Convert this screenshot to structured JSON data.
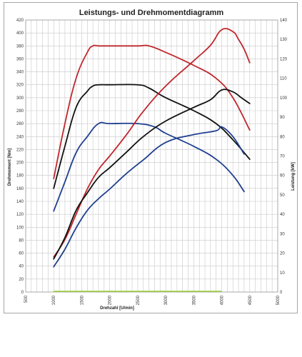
{
  "chart_data": {
    "type": "line",
    "title": "Leistungs- und Drehmomentdiagramm",
    "xlabel": "Drehzahl [U/min]",
    "ylabel": "Drehmoment [Nm]",
    "y2label": "Leistung [kW]",
    "xlim": [
      500,
      5000
    ],
    "ylim": [
      0,
      420
    ],
    "y2lim": [
      0,
      140
    ],
    "x_ticks": [
      "500",
      "1000",
      "1500",
      "2000",
      "2500",
      "3000",
      "3500",
      "4000",
      "4500",
      "5000"
    ],
    "y_ticks": [
      "0",
      "20",
      "40",
      "60",
      "80",
      "100",
      "120",
      "140",
      "160",
      "180",
      "200",
      "220",
      "240",
      "260",
      "280",
      "300",
      "320",
      "340",
      "360",
      "380",
      "400",
      "420"
    ],
    "y2_ticks": [
      "0",
      "10",
      "20",
      "30",
      "40",
      "50",
      "60",
      "70",
      "80",
      "90",
      "100",
      "110",
      "120",
      "130",
      "140"
    ],
    "grid": true,
    "colors": {
      "red": "#c0272d",
      "black": "#111111",
      "blue": "#1f3f8f",
      "baseline": "#9acd32"
    },
    "baseline_segment": {
      "x": [
        1000,
        4000
      ],
      "y": [
        0,
        0
      ]
    },
    "series": [
      {
        "color": "red",
        "axis": "left",
        "kind": "torque",
        "x": [
          1000,
          1200,
          1400,
          1600,
          1700,
          1800,
          2000,
          2500,
          2700,
          3000,
          3500,
          3900,
          4200,
          4500
        ],
        "y": [
          175,
          260,
          330,
          370,
          380,
          380,
          380,
          380,
          380,
          370,
          350,
          330,
          300,
          250
        ]
      },
      {
        "color": "black",
        "axis": "left",
        "kind": "torque",
        "x": [
          1000,
          1200,
          1400,
          1600,
          1700,
          1800,
          2000,
          2500,
          2700,
          3000,
          3500,
          3900,
          4200,
          4500
        ],
        "y": [
          160,
          225,
          285,
          310,
          318,
          320,
          320,
          320,
          315,
          300,
          280,
          260,
          235,
          205
        ]
      },
      {
        "color": "blue",
        "axis": "left",
        "kind": "torque",
        "x": [
          1000,
          1200,
          1400,
          1600,
          1800,
          2000,
          2500,
          2800,
          3000,
          3500,
          3900,
          4200,
          4400
        ],
        "y": [
          125,
          170,
          215,
          240,
          260,
          260,
          260,
          255,
          245,
          225,
          205,
          180,
          155
        ]
      },
      {
        "color": "red",
        "axis": "right",
        "kind": "power",
        "x": [
          1000,
          1200,
          1400,
          1600,
          1800,
          2000,
          2300,
          2600,
          3000,
          3500,
          3800,
          4000,
          4200,
          4300,
          4400,
          4500
        ],
        "y": [
          18,
          27,
          40,
          53,
          63,
          70,
          81,
          93,
          106,
          119,
          127,
          135,
          134,
          130,
          125,
          118
        ]
      },
      {
        "color": "black",
        "axis": "right",
        "kind": "power",
        "x": [
          1000,
          1200,
          1400,
          1600,
          1800,
          2000,
          2300,
          2600,
          3000,
          3500,
          3800,
          4000,
          4200,
          4350,
          4500
        ],
        "y": [
          17,
          28,
          42,
          51,
          59,
          64,
          72,
          80,
          88,
          95,
          99,
          104,
          103,
          100,
          97
        ]
      },
      {
        "color": "blue",
        "axis": "right",
        "kind": "power",
        "x": [
          1000,
          1200,
          1400,
          1600,
          1800,
          2000,
          2300,
          2600,
          3000,
          3500,
          3900,
          4000,
          4200,
          4400
        ],
        "y": [
          13,
          22,
          33,
          42,
          48,
          53,
          61,
          68,
          77,
          81,
          83,
          85,
          80,
          71
        ]
      }
    ]
  }
}
